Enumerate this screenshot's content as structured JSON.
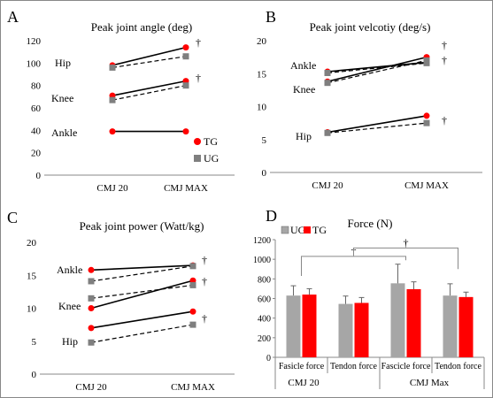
{
  "panels": {
    "A": {
      "letter": "A",
      "title": "Peak joint angle (deg)",
      "y_ticks": [
        "0",
        "20",
        "40",
        "60",
        "80",
        "100",
        "120"
      ],
      "x_ticks": [
        "CMJ 20",
        "CMJ MAX"
      ],
      "labels": {
        "hip": "Hip",
        "knee": "Knee",
        "ankle": "Ankle"
      },
      "dagger": "†",
      "legend": {
        "tg": "TG",
        "ug": "UG"
      }
    },
    "B": {
      "letter": "B",
      "title": "Peak joint velcotiy (deg/s)",
      "y_ticks": [
        "0",
        "5",
        "10",
        "15",
        "20"
      ],
      "x_ticks": [
        "CMJ 20",
        "CMJ MAX"
      ],
      "labels": {
        "ankle": "Ankle",
        "knee": "Knee",
        "hip": "Hip"
      },
      "dagger": "†"
    },
    "C": {
      "letter": "C",
      "title": "Peak joint power (Watt/kg)",
      "y_ticks": [
        "0",
        "5",
        "10",
        "15",
        "20"
      ],
      "x_ticks": [
        "CMJ 20",
        "CMJ MAX"
      ],
      "labels": {
        "ankle": "Ankle",
        "knee": "Knee",
        "hip": "Hip"
      },
      "dagger": "†"
    },
    "D": {
      "letter": "D",
      "title": "Force (N)",
      "y_ticks": [
        "0",
        "200",
        "400",
        "600",
        "800",
        "1000",
        "1200"
      ],
      "x_ticks": [
        "Fasicle force",
        "Tendon force",
        "Fascicle force",
        "Tendon force"
      ],
      "groups": [
        "CMJ 20",
        "CMJ Max"
      ],
      "legend": {
        "ug": "UG",
        "tg": "TG"
      },
      "dagger": "†"
    }
  },
  "colors": {
    "tg": "#ff0000",
    "ug": "#7f7f7f",
    "line": "#000000",
    "bar_ug": "#a6a6a6"
  },
  "chart_data": [
    {
      "type": "line",
      "title": "Peak joint angle (deg)",
      "categories": [
        "CMJ 20",
        "CMJ MAX"
      ],
      "ylim": [
        0,
        120
      ],
      "series": [
        {
          "name": "Hip TG",
          "values": [
            98,
            114
          ]
        },
        {
          "name": "Hip UG",
          "values": [
            96,
            106
          ]
        },
        {
          "name": "Knee TG",
          "values": [
            71,
            84
          ]
        },
        {
          "name": "Knee UG",
          "values": [
            67,
            80
          ]
        },
        {
          "name": "Ankle TG",
          "values": [
            39,
            39
          ]
        }
      ]
    },
    {
      "type": "line",
      "title": "Peak joint velcotiy (deg/s)",
      "categories": [
        "CMJ 20",
        "CMJ MAX"
      ],
      "ylim": [
        0,
        20
      ],
      "series": [
        {
          "name": "Ankle TG",
          "values": [
            15.3,
            16.7
          ]
        },
        {
          "name": "Ankle UG",
          "values": [
            15.1,
            16.6
          ]
        },
        {
          "name": "Knee TG",
          "values": [
            13.8,
            17.5
          ]
        },
        {
          "name": "Knee UG",
          "values": [
            13.6,
            17.0
          ]
        },
        {
          "name": "Hip TG",
          "values": [
            6.1,
            8.6
          ]
        },
        {
          "name": "Hip UG",
          "values": [
            6.0,
            7.5
          ]
        }
      ]
    },
    {
      "type": "line",
      "title": "Peak joint power (Watt/kg)",
      "categories": [
        "CMJ 20",
        "CMJ MAX"
      ],
      "ylim": [
        0,
        20
      ],
      "series": [
        {
          "name": "Ankle TG",
          "values": [
            15.8,
            16.5
          ]
        },
        {
          "name": "Ankle UG",
          "values": [
            14.1,
            16.4
          ]
        },
        {
          "name": "Knee TG",
          "values": [
            10.0,
            14.2
          ]
        },
        {
          "name": "Knee UG",
          "values": [
            11.5,
            13.5
          ]
        },
        {
          "name": "Hip TG",
          "values": [
            7.0,
            9.5
          ]
        },
        {
          "name": "Hip UG",
          "values": [
            4.8,
            7.5
          ]
        }
      ]
    },
    {
      "type": "bar",
      "title": "Force (N)",
      "categories": [
        "Fasicle force",
        "Tendon force",
        "Fascicle force",
        "Tendon force"
      ],
      "ylim": [
        0,
        1200
      ],
      "series": [
        {
          "name": "UG",
          "values": [
            630,
            545,
            755,
            630
          ],
          "errors": [
            100,
            80,
            195,
            120
          ]
        },
        {
          "name": "TG",
          "values": [
            640,
            555,
            695,
            615
          ],
          "errors": [
            60,
            55,
            75,
            50
          ]
        }
      ]
    }
  ]
}
